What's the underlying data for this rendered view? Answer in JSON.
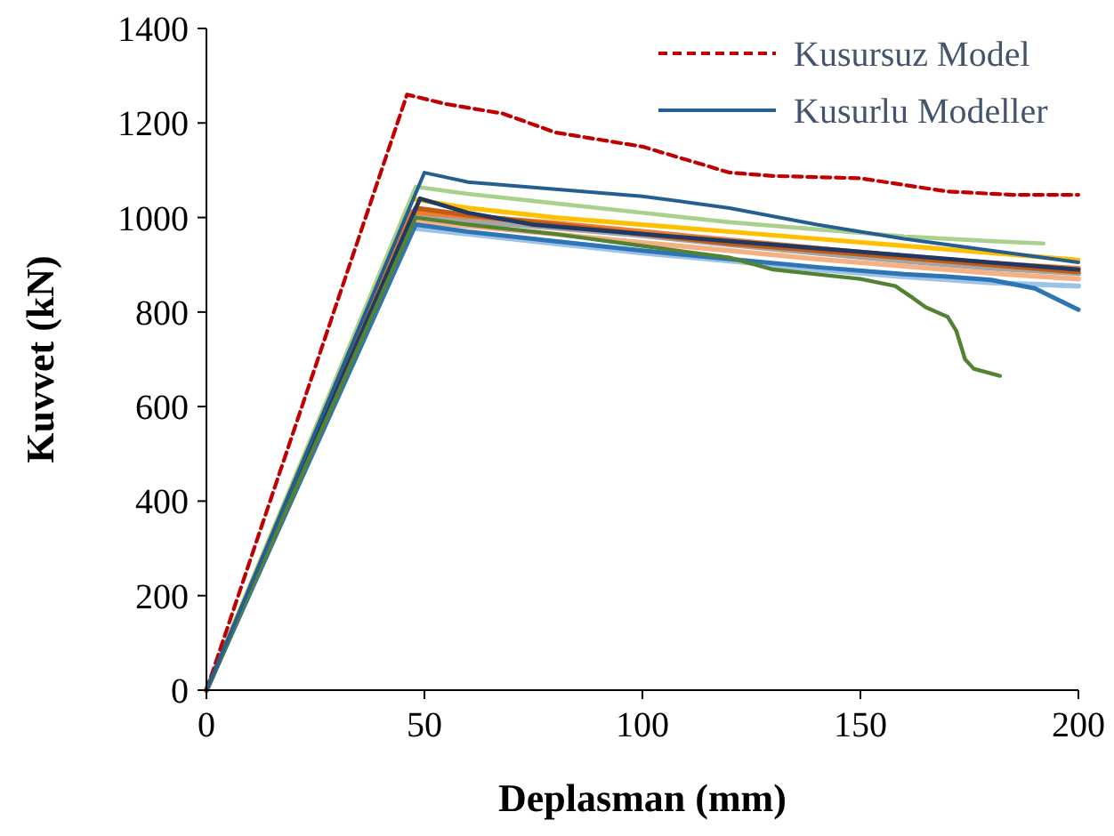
{
  "chart_data": {
    "type": "line",
    "xlabel": "Deplasman (mm)",
    "ylabel": "Kuvvet (kN)",
    "xlim": [
      0,
      200
    ],
    "ylim": [
      0,
      1400
    ],
    "xticks": [
      0,
      50,
      100,
      150,
      200
    ],
    "yticks": [
      0,
      200,
      400,
      600,
      800,
      1000,
      1200,
      1400
    ],
    "grid": false,
    "legend": "top right",
    "marker": "none",
    "series": [
      {
        "color": "#a5a5a5",
        "x": [
          0,
          47,
          60,
          80,
          100,
          120,
          140,
          160,
          180,
          200
        ],
        "values": [
          0,
          1003,
          993,
          978,
          962,
          943,
          925,
          908,
          893,
          882
        ]
      },
      {
        "color": "#ed7d31",
        "x": [
          0,
          47,
          60,
          80,
          100,
          120,
          140,
          160,
          180,
          200
        ],
        "values": [
          0,
          1012,
          1003,
          988,
          970,
          952,
          935,
          918,
          903,
          892
        ]
      },
      {
        "color": "#9dc3e6",
        "x": [
          0,
          47,
          60,
          80,
          100,
          120,
          140,
          160,
          180,
          200
        ],
        "values": [
          0,
          978,
          965,
          945,
          925,
          908,
          890,
          875,
          862,
          855
        ]
      },
      {
        "color": "#f4b183",
        "x": [
          0,
          47,
          60,
          80,
          100,
          120,
          140,
          160,
          180,
          200
        ],
        "values": [
          0,
          992,
          982,
          965,
          947,
          930,
          912,
          897,
          882,
          870
        ]
      },
      {
        "color": "#c55a11",
        "x": [
          0,
          48,
          60,
          80,
          100,
          120,
          140,
          160,
          180,
          200
        ],
        "values": [
          0,
          1020,
          1005,
          985,
          965,
          945,
          930,
          915,
          900,
          885
        ]
      },
      {
        "color": "#ffc000",
        "x": [
          0,
          47,
          60,
          80,
          100,
          120,
          140,
          160,
          180,
          200
        ],
        "values": [
          0,
          1040,
          1020,
          1000,
          985,
          970,
          955,
          940,
          925,
          910
        ]
      },
      {
        "color": "#2e75b6",
        "x": [
          0,
          48,
          60,
          80,
          100,
          120,
          140,
          160,
          170,
          180,
          190,
          200
        ],
        "values": [
          0,
          985,
          970,
          950,
          930,
          912,
          895,
          880,
          875,
          868,
          850,
          805
        ]
      },
      {
        "color": "#1f3864",
        "x": [
          0,
          49,
          60,
          75,
          100,
          120,
          140,
          160,
          180,
          200
        ],
        "values": [
          0,
          1040,
          1010,
          985,
          965,
          950,
          935,
          920,
          905,
          890
        ]
      },
      {
        "color": "#a9d18e",
        "x": [
          0,
          48,
          60,
          80,
          100,
          120,
          140,
          160,
          180,
          192
        ],
        "values": [
          0,
          1065,
          1050,
          1030,
          1010,
          990,
          975,
          960,
          950,
          945
        ]
      },
      {
        "color": "#548235",
        "x": [
          0,
          48,
          60,
          80,
          100,
          120,
          130,
          140,
          150,
          158,
          162,
          165,
          170,
          172,
          174,
          176,
          182
        ],
        "values": [
          0,
          1000,
          985,
          965,
          940,
          915,
          890,
          880,
          870,
          855,
          830,
          810,
          790,
          760,
          700,
          680,
          665
        ]
      },
      {
        "name": "Kusursuz Model",
        "color": "#c00000",
        "line_style": "dashed",
        "x": [
          0,
          46,
          55,
          68,
          80,
          100,
          120,
          130,
          150,
          170,
          185,
          200
        ],
        "values": [
          0,
          1260,
          1240,
          1220,
          1180,
          1150,
          1095,
          1088,
          1083,
          1055,
          1048,
          1048
        ]
      },
      {
        "name": "Kusurlu Modeller",
        "color": "#255e91",
        "line_style": "solid",
        "x": [
          0,
          50,
          60,
          80,
          100,
          120,
          140,
          160,
          180,
          200
        ],
        "values": [
          0,
          1095,
          1075,
          1060,
          1045,
          1020,
          985,
          955,
          930,
          905
        ]
      }
    ]
  }
}
